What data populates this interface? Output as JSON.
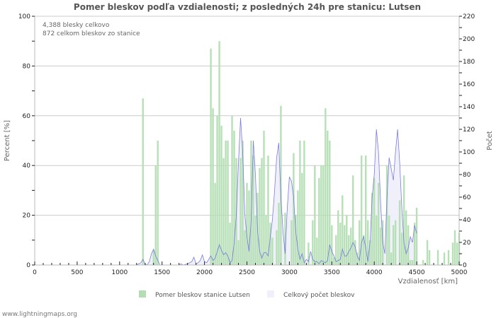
{
  "chart_data": {
    "type": "bar",
    "title": "Pomer bleskov podľa vzdialenosti; z posledných 24h pre stanicu: Lutsen",
    "xlabel": "Vzdialenosť   [km]",
    "ylabel": "Percent   [%]",
    "ylabel_right": "Počet",
    "xlim": [
      0,
      5000
    ],
    "ylim": [
      0,
      100
    ],
    "ylim_right": [
      0,
      220
    ],
    "x_ticks": [
      0,
      500,
      1000,
      1500,
      2000,
      2500,
      3000,
      3500,
      4000,
      4500,
      5000
    ],
    "y_ticks": [
      0,
      20,
      40,
      60,
      80,
      100
    ],
    "y_ticks_right": [
      0,
      20,
      40,
      60,
      80,
      100,
      120,
      140,
      160,
      180,
      200,
      220
    ],
    "grid": true,
    "bin_km": 25,
    "legend_position": "bottom",
    "annotations": [
      "4,388 blesky celkovo",
      "872 celkom bleskov zo stanice"
    ],
    "series": [
      {
        "name": "Pomer bleskov stanice Lutsen",
        "type": "bar",
        "axis": "left",
        "color": "#b3deb3",
        "points": [
          [
            1275,
            67
          ],
          [
            1400,
            6
          ],
          [
            1425,
            40
          ],
          [
            1450,
            50
          ],
          [
            2075,
            87
          ],
          [
            2100,
            63
          ],
          [
            2125,
            33
          ],
          [
            2150,
            60
          ],
          [
            2175,
            90
          ],
          [
            2200,
            56
          ],
          [
            2225,
            43
          ],
          [
            2250,
            50
          ],
          [
            2275,
            50
          ],
          [
            2300,
            17
          ],
          [
            2325,
            60
          ],
          [
            2350,
            54
          ],
          [
            2375,
            43
          ],
          [
            2400,
            10
          ],
          [
            2425,
            43
          ],
          [
            2450,
            50
          ],
          [
            2475,
            14
          ],
          [
            2500,
            33
          ],
          [
            2525,
            30
          ],
          [
            2550,
            50
          ],
          [
            2575,
            44
          ],
          [
            2600,
            20
          ],
          [
            2625,
            29
          ],
          [
            2650,
            39
          ],
          [
            2675,
            43
          ],
          [
            2700,
            54
          ],
          [
            2725,
            20
          ],
          [
            2750,
            44
          ],
          [
            2775,
            17
          ],
          [
            2800,
            11
          ],
          [
            2825,
            0
          ],
          [
            2850,
            14
          ],
          [
            2875,
            25
          ],
          [
            2900,
            64
          ],
          [
            2950,
            21
          ],
          [
            3025,
            18
          ],
          [
            3050,
            45
          ],
          [
            3075,
            20
          ],
          [
            3100,
            30
          ],
          [
            3125,
            50
          ],
          [
            3150,
            37
          ],
          [
            3175,
            50
          ],
          [
            3225,
            9
          ],
          [
            3275,
            18
          ],
          [
            3300,
            40
          ],
          [
            3325,
            11
          ],
          [
            3350,
            35
          ],
          [
            3375,
            40
          ],
          [
            3400,
            40
          ],
          [
            3425,
            63
          ],
          [
            3450,
            54
          ],
          [
            3475,
            50
          ],
          [
            3500,
            16
          ],
          [
            3525,
            3
          ],
          [
            3550,
            12
          ],
          [
            3575,
            22
          ],
          [
            3600,
            17
          ],
          [
            3625,
            28
          ],
          [
            3650,
            16
          ],
          [
            3675,
            20
          ],
          [
            3700,
            12
          ],
          [
            3725,
            15
          ],
          [
            3750,
            36
          ],
          [
            3775,
            10
          ],
          [
            3800,
            5
          ],
          [
            3825,
            18
          ],
          [
            3850,
            44
          ],
          [
            3875,
            12
          ],
          [
            3900,
            44
          ],
          [
            3925,
            18
          ],
          [
            3950,
            10
          ],
          [
            3975,
            29
          ],
          [
            4000,
            35
          ],
          [
            4025,
            20
          ],
          [
            4050,
            33
          ],
          [
            4075,
            15
          ],
          [
            4100,
            18
          ],
          [
            4150,
            40
          ],
          [
            4175,
            20
          ],
          [
            4200,
            5
          ],
          [
            4225,
            16
          ],
          [
            4250,
            18
          ],
          [
            4300,
            26
          ],
          [
            4325,
            13
          ],
          [
            4350,
            36
          ],
          [
            4375,
            22
          ],
          [
            4400,
            16
          ],
          [
            4425,
            2
          ],
          [
            4450,
            2
          ],
          [
            4475,
            17
          ],
          [
            4500,
            23
          ],
          [
            4575,
            2
          ],
          [
            4625,
            10
          ],
          [
            4650,
            6
          ],
          [
            4750,
            6
          ],
          [
            4825,
            5
          ],
          [
            4875,
            6
          ],
          [
            4925,
            9
          ],
          [
            4950,
            14
          ],
          [
            4975,
            9
          ],
          [
            5000,
            13
          ]
        ]
      },
      {
        "name": "Celkový počet bleskov",
        "type": "area",
        "axis": "right",
        "color": "#6666dd",
        "fill": "#f0f0fa",
        "points": [
          [
            1200,
            0
          ],
          [
            1225,
            1
          ],
          [
            1250,
            2
          ],
          [
            1275,
            5
          ],
          [
            1300,
            1
          ],
          [
            1325,
            0
          ],
          [
            1350,
            3
          ],
          [
            1375,
            10
          ],
          [
            1400,
            14
          ],
          [
            1425,
            8
          ],
          [
            1450,
            4
          ],
          [
            1475,
            0
          ],
          [
            1700,
            0
          ],
          [
            1725,
            1
          ],
          [
            1750,
            0
          ],
          [
            1800,
            1
          ],
          [
            1850,
            3
          ],
          [
            1875,
            7
          ],
          [
            1900,
            1
          ],
          [
            1925,
            2
          ],
          [
            1950,
            4
          ],
          [
            1975,
            9
          ],
          [
            2000,
            3
          ],
          [
            2025,
            2
          ],
          [
            2050,
            5
          ],
          [
            2075,
            8
          ],
          [
            2100,
            4
          ],
          [
            2125,
            6
          ],
          [
            2150,
            12
          ],
          [
            2175,
            18
          ],
          [
            2200,
            13
          ],
          [
            2225,
            9
          ],
          [
            2250,
            11
          ],
          [
            2275,
            8
          ],
          [
            2300,
            2
          ],
          [
            2325,
            4
          ],
          [
            2350,
            20
          ],
          [
            2375,
            45
          ],
          [
            2400,
            90
          ],
          [
            2425,
            130
          ],
          [
            2450,
            100
          ],
          [
            2475,
            45
          ],
          [
            2500,
            25
          ],
          [
            2525,
            12
          ],
          [
            2550,
            40
          ],
          [
            2575,
            110
          ],
          [
            2600,
            80
          ],
          [
            2625,
            30
          ],
          [
            2650,
            12
          ],
          [
            2675,
            6
          ],
          [
            2700,
            11
          ],
          [
            2725,
            11
          ],
          [
            2750,
            8
          ],
          [
            2775,
            25
          ],
          [
            2800,
            40
          ],
          [
            2825,
            65
          ],
          [
            2850,
            95
          ],
          [
            2875,
            108
          ],
          [
            2900,
            60
          ],
          [
            2925,
            30
          ],
          [
            2950,
            10
          ],
          [
            2975,
            50
          ],
          [
            3000,
            78
          ],
          [
            3025,
            74
          ],
          [
            3050,
            60
          ],
          [
            3075,
            30
          ],
          [
            3100,
            14
          ],
          [
            3125,
            5
          ],
          [
            3150,
            10
          ],
          [
            3175,
            2
          ],
          [
            3200,
            5
          ],
          [
            3225,
            3
          ],
          [
            3250,
            12
          ],
          [
            3275,
            5
          ],
          [
            3300,
            3
          ],
          [
            3325,
            3
          ],
          [
            3350,
            1
          ],
          [
            3375,
            4
          ],
          [
            3400,
            3
          ],
          [
            3425,
            2
          ],
          [
            3450,
            4
          ],
          [
            3475,
            18
          ],
          [
            3500,
            12
          ],
          [
            3525,
            8
          ],
          [
            3550,
            3
          ],
          [
            3575,
            4
          ],
          [
            3600,
            5
          ],
          [
            3625,
            14
          ],
          [
            3650,
            8
          ],
          [
            3675,
            8
          ],
          [
            3700,
            12
          ],
          [
            3725,
            15
          ],
          [
            3750,
            20
          ],
          [
            3775,
            16
          ],
          [
            3800,
            8
          ],
          [
            3825,
            4
          ],
          [
            3850,
            20
          ],
          [
            3875,
            25
          ],
          [
            3900,
            15
          ],
          [
            3925,
            3
          ],
          [
            3950,
            20
          ],
          [
            3975,
            60
          ],
          [
            4000,
            80
          ],
          [
            4025,
            120
          ],
          [
            4050,
            100
          ],
          [
            4075,
            55
          ],
          [
            4100,
            20
          ],
          [
            4125,
            10
          ],
          [
            4150,
            60
          ],
          [
            4175,
            95
          ],
          [
            4200,
            85
          ],
          [
            4225,
            75
          ],
          [
            4250,
            100
          ],
          [
            4275,
            120
          ],
          [
            4300,
            90
          ],
          [
            4325,
            50
          ],
          [
            4350,
            20
          ],
          [
            4375,
            10
          ],
          [
            4400,
            15
          ],
          [
            4425,
            25
          ],
          [
            4450,
            20
          ],
          [
            4475,
            35
          ],
          [
            4500,
            28
          ]
        ]
      }
    ]
  },
  "header": {
    "title": "Pomer bleskov podľa vzdialenosti; z posledných 24h pre stanicu: Lutsen"
  },
  "info": {
    "line1": "4,388 blesky celkovo",
    "line2": "872 celkom bleskov zo stanice"
  },
  "axes": {
    "x_title": "Vzdialenosť   [km]",
    "y_left_title": "Percent   [%]",
    "y_right_title": "Počet"
  },
  "legend": {
    "items": [
      {
        "label": "Pomer bleskov stanice Lutsen",
        "color": "#b3deb3"
      },
      {
        "label": "Celkový počet bleskov",
        "color": "#f0f0fa"
      }
    ]
  },
  "footer": {
    "text": "www.lightningmaps.org"
  }
}
